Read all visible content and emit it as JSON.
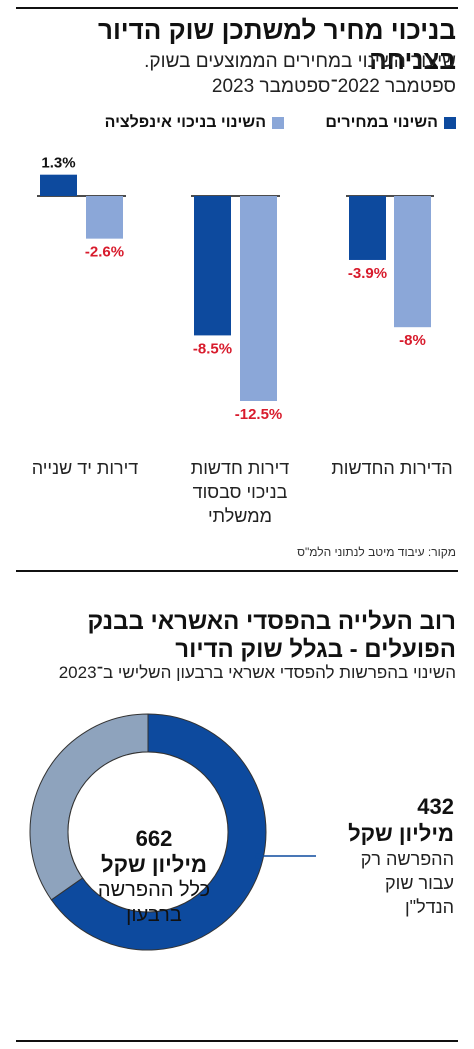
{
  "chart_data": [
    {
      "type": "bar",
      "title": "בניכוי מחיר למשתכן שוק הדיור בצניחה",
      "subtitle_lines": [
        "שיעור השינוי במחירים הממוצעים בשוק.",
        "ספטמבר 2022־ספטמבר 2023"
      ],
      "categories": [
        {
          "lines": [
            "הדירות החדשות"
          ]
        },
        {
          "lines": [
            "דירות חדשות",
            "בניכוי סבסוד",
            "ממשלתי"
          ]
        },
        {
          "lines": [
            "דירות יד שנייה"
          ]
        }
      ],
      "series": [
        {
          "name": "השינוי במחירים",
          "color": "#0d4a9e",
          "values": [
            -3.9,
            -8.5,
            1.3
          ],
          "labels": [
            "-3.9%",
            "-8.5%",
            "1.3%"
          ]
        },
        {
          "name": "השינוי בניכוי אינפלציה",
          "color": "#8ba7d8",
          "values": [
            -8,
            -12.5,
            -2.6
          ],
          "labels": [
            "-8%",
            "-12.5%",
            "-2.6%"
          ]
        }
      ],
      "ylim": [
        -12.5,
        1.3
      ],
      "legend_position": "top",
      "grid": false,
      "source": "מקור: עיבוד מיטב לנתוני הלמ\"ס"
    },
    {
      "type": "pie",
      "title": "רוב העלייה בהפסדי האשראי בבנק הפועלים - בגלל שוק הדיור",
      "subtitle": "השינוי בהפרשות להפסדי אשראי ברבעון השלישי ב־2023",
      "total": {
        "value": "662",
        "unit": "מיליון שקל",
        "text": "כלל ההפרשה ברבעון"
      },
      "slices": [
        {
          "value": 432,
          "color": "#0d4a9e",
          "label_value": "432",
          "label_unit": "מיליון שקל",
          "label_text": "ההפרשה רק עבור שוק הנדל\"ן"
        },
        {
          "value": 230,
          "color": "#8ea3bd"
        }
      ]
    }
  ],
  "colors": {
    "dark_blue": "#0d4a9e",
    "light_blue": "#8ba7d8",
    "negative_label": "#d81b2c",
    "donut_rest": "#8ea3bd"
  }
}
